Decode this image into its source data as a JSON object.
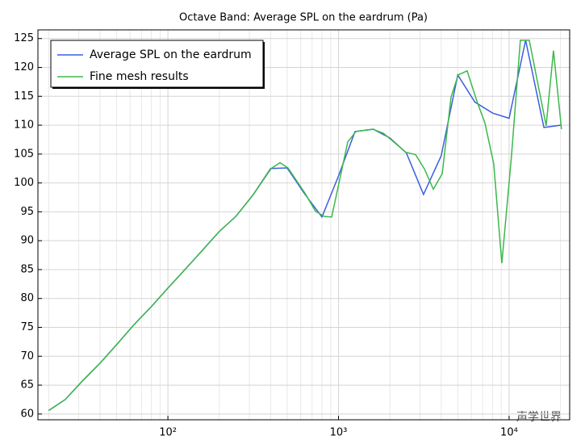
{
  "chart_data": {
    "type": "line",
    "title": "Octave Band: Average SPL on the eardrum (Pa)",
    "xscale": "log",
    "grid": true,
    "legend": "upper left",
    "xlim": [
      17.3,
      22650
    ],
    "ylim": [
      59,
      126.5
    ],
    "xticks": [
      {
        "value": 100,
        "label": "10²"
      },
      {
        "value": 1000,
        "label": "10³"
      },
      {
        "value": 10000,
        "label": "10⁴"
      }
    ],
    "yticks": [
      60,
      65,
      70,
      75,
      80,
      85,
      90,
      95,
      100,
      105,
      110,
      115,
      120,
      125
    ],
    "series": [
      {
        "name": "Average SPL on the eardrum",
        "color": "#3a5ee0",
        "x": [
          20,
          25,
          31.5,
          40,
          50,
          63,
          80,
          100,
          125,
          160,
          200,
          250,
          315,
          400,
          500,
          630,
          800,
          1000,
          1250,
          1600,
          2000,
          2500,
          3150,
          4000,
          5000,
          6300,
          8000,
          10000,
          12500,
          16000,
          20000
        ],
        "values": [
          60.6,
          62.5,
          65.7,
          68.8,
          72,
          75.4,
          78.6,
          81.8,
          84.9,
          88.4,
          91.6,
          94.2,
          97.9,
          102.5,
          102.6,
          98.2,
          94.1,
          101.2,
          108.9,
          109.3,
          107.8,
          105.2,
          98,
          104.7,
          118.7,
          114,
          112.1,
          111.2,
          124.7,
          109.6,
          110
        ]
      },
      {
        "name": "Fine mesh results",
        "color": "#3cb84a",
        "x": [
          20,
          25,
          31.5,
          40,
          50,
          63,
          80,
          100,
          125,
          160,
          200,
          250,
          315,
          403,
          454,
          506,
          637,
          733,
          826,
          912,
          1133,
          1265,
          1589,
          1830,
          1977,
          2483,
          2831,
          3192,
          3597,
          4055,
          4569,
          5035,
          5676,
          6468,
          7213,
          8128,
          9065,
          10330,
          11640,
          13130,
          16490,
          18200,
          20280
        ],
        "values": [
          60.6,
          62.5,
          65.7,
          68.8,
          72,
          75.4,
          78.6,
          81.8,
          84.9,
          88.4,
          91.6,
          94.2,
          97.9,
          102.5,
          103.5,
          102.6,
          98.2,
          95.1,
          94.2,
          94.1,
          107.1,
          108.9,
          109.3,
          108.6,
          107.8,
          105.3,
          104.9,
          102.4,
          98.9,
          101.6,
          114.9,
          118.7,
          119.4,
          114.2,
          110.4,
          103.3,
          86.1,
          104.7,
          124.7,
          124.7,
          109.9,
          122.9,
          109.3
        ]
      }
    ]
  },
  "watermark": "声学世界"
}
